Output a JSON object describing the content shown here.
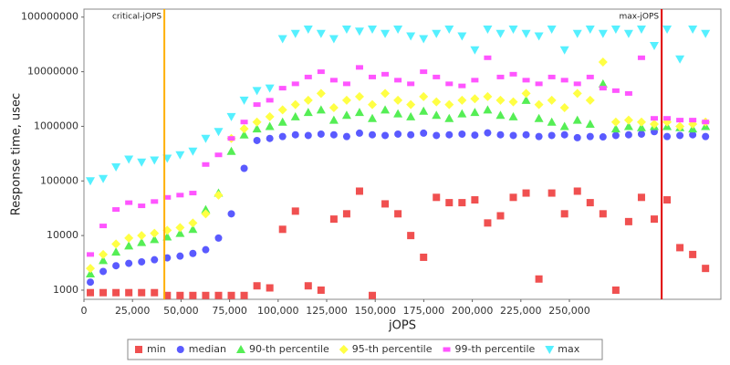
{
  "chart_data": {
    "type": "scatter",
    "x_label": "jOPS",
    "y_label": "Response time, usec",
    "log_y": true,
    "grid": false,
    "legend": "bottom",
    "xlim": [
      0,
      328000
    ],
    "ylim": [
      680,
      140000000
    ],
    "xticks": [
      0,
      {
        "value": 25000,
        "label": "25,000"
      },
      {
        "value": 50000,
        "label": "50,000"
      },
      {
        "value": 75000,
        "label": "75,000"
      },
      {
        "value": 100000,
        "label": "100,000"
      },
      {
        "value": 125000,
        "label": "125,000"
      },
      {
        "value": 150000,
        "label": "150,000"
      },
      {
        "value": 175000,
        "label": "175,000"
      },
      {
        "value": 200000,
        "label": "200,000"
      },
      {
        "value": 225000,
        "label": "225,000"
      },
      {
        "value": 250000,
        "label": "250,000"
      }
    ],
    "yticks": [
      1000,
      10000,
      100000,
      1000000,
      10000000,
      100000000
    ],
    "markers": [
      {
        "label": "critical-jOPS",
        "x": 41400,
        "color": "#ffb000"
      },
      {
        "label": "max-jOPS",
        "x": 297500,
        "color": "#e00000"
      }
    ],
    "x": [
      3300,
      9900,
      16500,
      23100,
      29700,
      36300,
      42900,
      49500,
      56100,
      62700,
      69300,
      75900,
      82500,
      89100,
      95700,
      102300,
      108900,
      115500,
      122100,
      128700,
      135300,
      141900,
      148500,
      155100,
      161700,
      168300,
      174900,
      181500,
      188100,
      194700,
      201300,
      207900,
      214500,
      221100,
      227700,
      234300,
      240900,
      247500,
      254100,
      260700,
      267300,
      273900,
      280500,
      287100,
      293700,
      300300,
      306900,
      313500,
      320100
    ],
    "series": [
      {
        "name": "min",
        "color": "#f05050",
        "marker": "square",
        "values": [
          900,
          900,
          900,
          900,
          900,
          900,
          800,
          800,
          800,
          800,
          800,
          800,
          800,
          1200,
          1100,
          13000,
          28000,
          1200,
          1000,
          20000,
          25000,
          65000,
          800,
          38000,
          25000,
          10000,
          4000,
          50000,
          40000,
          40000,
          45000,
          17000,
          23000,
          50000,
          60000,
          1600,
          60000,
          25000,
          65000,
          40000,
          25000,
          1000,
          18000,
          50000,
          20000,
          45000,
          6000,
          4500,
          2500
        ]
      },
      {
        "name": "median",
        "color": "#5a5aff",
        "marker": "circle",
        "values": [
          1400,
          2200,
          2800,
          3100,
          3300,
          3600,
          3900,
          4200,
          4700,
          5500,
          9000,
          25000,
          170000,
          550000,
          600000,
          650000,
          700000,
          680000,
          720000,
          700000,
          650000,
          750000,
          700000,
          680000,
          720000,
          700000,
          750000,
          680000,
          700000,
          720000,
          690000,
          760000,
          700000,
          680000,
          700000,
          650000,
          680000,
          700000,
          620000,
          650000,
          640000,
          680000,
          700000,
          720000,
          800000,
          650000,
          680000,
          700000,
          650000
        ]
      },
      {
        "name": "90-th percentile",
        "color": "#55ee55",
        "marker": "triangle-up",
        "values": [
          2000,
          3500,
          5000,
          6500,
          7500,
          8500,
          9500,
          11000,
          13000,
          30000,
          60000,
          350000,
          700000,
          900000,
          1000000,
          1200000,
          1500000,
          1800000,
          2000000,
          1300000,
          1600000,
          1800000,
          1400000,
          2000000,
          1700000,
          1500000,
          1900000,
          1600000,
          1400000,
          1700000,
          1800000,
          2000000,
          1600000,
          1500000,
          3000000,
          1400000,
          1200000,
          1000000,
          1300000,
          1100000,
          6000000,
          900000,
          1000000,
          950000,
          1000000,
          1000000,
          950000,
          900000,
          1000000
        ]
      },
      {
        "name": "95-th percentile",
        "color": "#ffff44",
        "marker": "diamond",
        "values": [
          2500,
          4500,
          7000,
          9000,
          10000,
          11000,
          12500,
          14000,
          17000,
          25000,
          55000,
          600000,
          900000,
          1200000,
          1500000,
          2000000,
          2500000,
          3000000,
          4000000,
          2200000,
          3000000,
          3500000,
          2500000,
          4000000,
          3000000,
          2500000,
          3500000,
          2800000,
          2500000,
          3000000,
          3200000,
          3500000,
          3000000,
          2800000,
          4000000,
          2500000,
          3000000,
          2200000,
          4000000,
          3000000,
          15000000,
          1200000,
          1300000,
          1200000,
          1100000,
          1200000,
          1000000,
          1100000,
          1200000
        ]
      },
      {
        "name": "99-th percentile",
        "color": "#ff55ff",
        "marker": "bar",
        "values": [
          4500,
          15000,
          30000,
          40000,
          35000,
          42000,
          50000,
          55000,
          60000,
          200000,
          300000,
          600000,
          1200000,
          2500000,
          3000000,
          5000000,
          6000000,
          8000000,
          10000000,
          7000000,
          6000000,
          12000000,
          8000000,
          9000000,
          7000000,
          6000000,
          10000000,
          8000000,
          6000000,
          5500000,
          7000000,
          18000000,
          8000000,
          9000000,
          7000000,
          6000000,
          8000000,
          7000000,
          6000000,
          8000000,
          5000000,
          4500000,
          4000000,
          18000000,
          1400000,
          1400000,
          1300000,
          1300000,
          1200000
        ]
      },
      {
        "name": "max",
        "color": "#55f0ff",
        "marker": "triangle-down",
        "values": [
          100000,
          110000,
          180000,
          250000,
          220000,
          240000,
          260000,
          300000,
          350000,
          600000,
          800000,
          1500000,
          3000000,
          4500000,
          5000000,
          40000000,
          50000000,
          60000000,
          50000000,
          40000000,
          60000000,
          55000000,
          60000000,
          50000000,
          60000000,
          45000000,
          40000000,
          50000000,
          60000000,
          45000000,
          25000000,
          60000000,
          50000000,
          60000000,
          50000000,
          45000000,
          60000000,
          25000000,
          50000000,
          60000000,
          50000000,
          60000000,
          50000000,
          60000000,
          30000000,
          60000000,
          17000000,
          60000000,
          50000000
        ]
      }
    ]
  }
}
